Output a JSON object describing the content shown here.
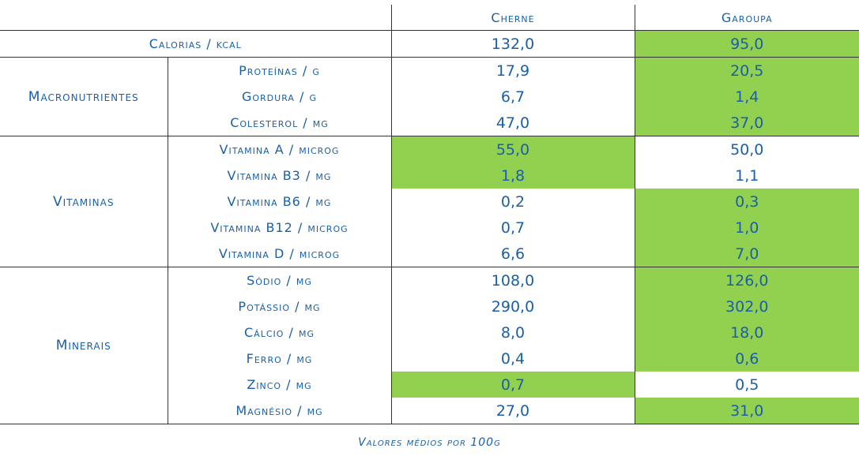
{
  "headers": {
    "col1": "Cherne",
    "col2": "Garoupa"
  },
  "highlight_color": "#92d050",
  "text_color": "#1a5fa8",
  "calorias": {
    "label": "Calorias / kcal",
    "cherne": "132,0",
    "garoupa": "95,0"
  },
  "groups": {
    "macro": "Macronutrientes",
    "vit": "Vitaminas",
    "min": "Minerais"
  },
  "rows": [
    {
      "label": "Proteínas / g",
      "cherne": "17,9",
      "garoupa": "20,5"
    },
    {
      "label": "Gordura / g",
      "cherne": "6,7",
      "garoupa": "1,4"
    },
    {
      "label": "Colesterol / mg",
      "cherne": "47,0",
      "garoupa": "37,0"
    },
    {
      "label": "Vitamina A / microg",
      "cherne": "55,0",
      "garoupa": "50,0"
    },
    {
      "label": "Vitamina B3 / mg",
      "cherne": "1,8",
      "garoupa": "1,1"
    },
    {
      "label": "Vitamina B6 / mg",
      "cherne": "0,2",
      "garoupa": "0,3"
    },
    {
      "label": "Vitamina B12 / microg",
      "cherne": "0,7",
      "garoupa": "1,0"
    },
    {
      "label": "Vitamina D / microg",
      "cherne": "6,6",
      "garoupa": "7,0"
    },
    {
      "label": "Sódio / mg",
      "cherne": "108,0",
      "garoupa": "126,0"
    },
    {
      "label": "Potássio / mg",
      "cherne": "290,0",
      "garoupa": "302,0"
    },
    {
      "label": "Cálcio / mg",
      "cherne": "8,0",
      "garoupa": "18,0"
    },
    {
      "label": "Ferro / mg",
      "cherne": "0,4",
      "garoupa": "0,6"
    },
    {
      "label": "Zinco / mg",
      "cherne": "0,7",
      "garoupa": "0,5"
    },
    {
      "label": "Magnésio / mg",
      "cherne": "27,0",
      "garoupa": "31,0"
    }
  ],
  "footnote": "Valores médios por 100g"
}
